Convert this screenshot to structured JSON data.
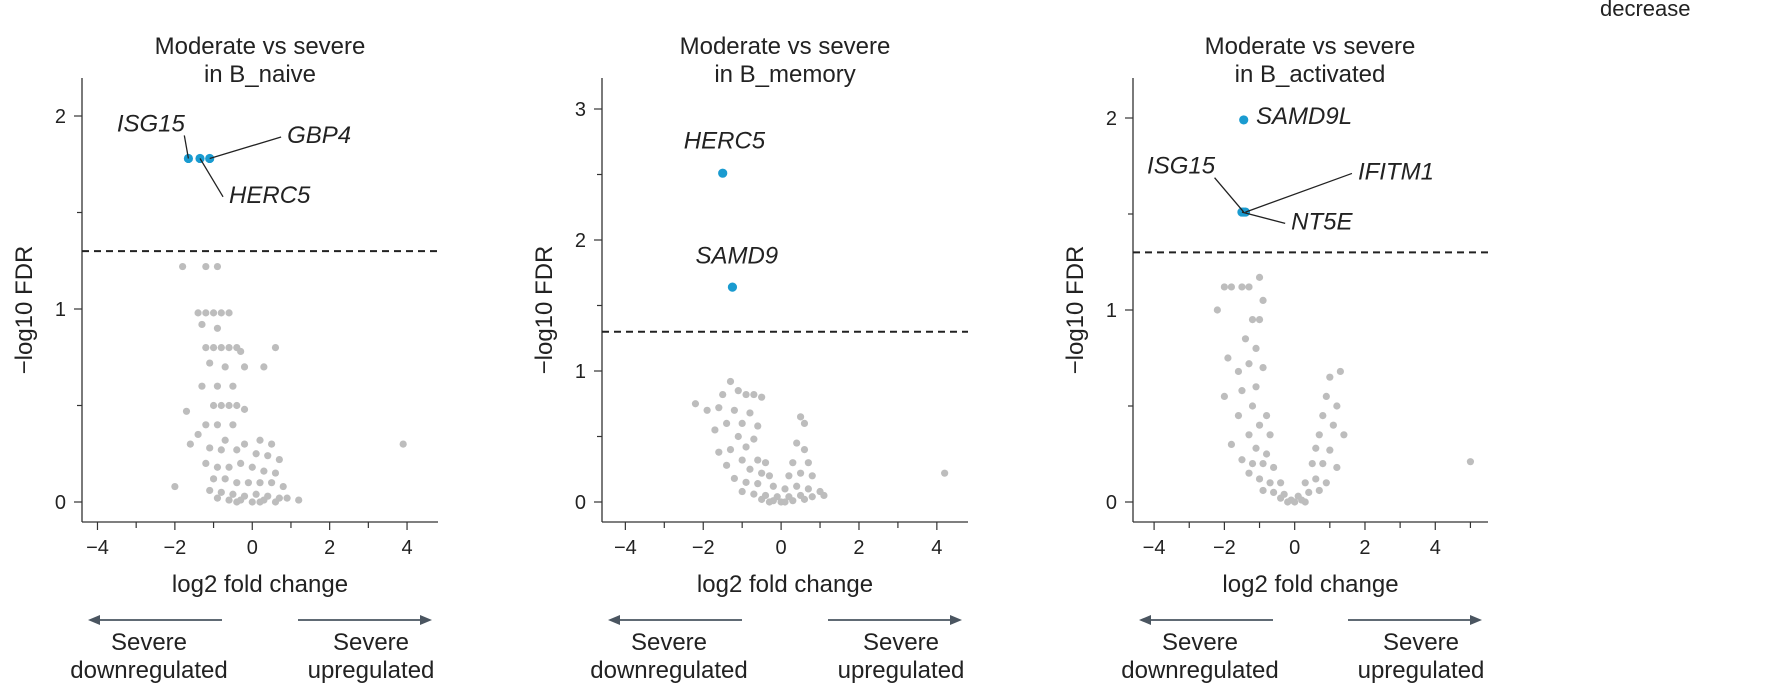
{
  "legend_fragment": "decrease",
  "colors": {
    "significant": "#1a9bd0",
    "nonsignificant": "#bdbdbd",
    "axis": "#333333",
    "arrow": "#4a5560"
  },
  "chart_data": [
    {
      "type": "scatter",
      "title": [
        "Moderate vs severe",
        "in B_naive"
      ],
      "xlabel": "log2 fold change",
      "ylabel": "−log10 FDR",
      "xlim": [
        -4.4,
        4.8
      ],
      "ylim": [
        -0.12,
        2.2
      ],
      "xticks": [
        -4,
        -2,
        0,
        2,
        4
      ],
      "xtick_labels": [
        "−4",
        "−2",
        "0",
        "2",
        "4"
      ],
      "yticks": [
        0,
        1,
        2
      ],
      "ytick_labels": [
        "0",
        "1",
        "2"
      ],
      "threshold": 1.3,
      "direction_labels": {
        "left": [
          "Severe",
          "downregulated"
        ],
        "right": [
          "Severe",
          "upregulated"
        ]
      },
      "significant": [
        {
          "gene": "ISG15",
          "x": -1.65,
          "y": 1.78
        },
        {
          "gene": "HERC5",
          "x": -1.35,
          "y": 1.78
        },
        {
          "gene": "GBP4",
          "x": -1.1,
          "y": 1.78
        }
      ],
      "labels": [
        {
          "text": "ISG15",
          "anchor": "ISG15",
          "tx": -3.5,
          "ty": 1.92
        },
        {
          "text": "GBP4",
          "anchor": "GBP4",
          "tx": 0.9,
          "ty": 1.86
        },
        {
          "text": "HERC5",
          "anchor": "HERC5",
          "tx": -0.6,
          "ty": 1.55
        }
      ],
      "background": [
        [
          -1.8,
          1.22
        ],
        [
          -1.2,
          1.22
        ],
        [
          -0.9,
          1.22
        ],
        [
          -1.4,
          0.98
        ],
        [
          -1.2,
          0.98
        ],
        [
          -1.0,
          0.98
        ],
        [
          -0.8,
          0.98
        ],
        [
          -0.6,
          0.98
        ],
        [
          -1.3,
          0.92
        ],
        [
          -0.9,
          0.9
        ],
        [
          -1.2,
          0.8
        ],
        [
          -1.0,
          0.8
        ],
        [
          -0.8,
          0.8
        ],
        [
          -0.6,
          0.8
        ],
        [
          -0.4,
          0.8
        ],
        [
          -1.1,
          0.72
        ],
        [
          -0.7,
          0.7
        ],
        [
          -0.3,
          0.78
        ],
        [
          -0.2,
          0.7
        ],
        [
          0.3,
          0.7
        ],
        [
          0.6,
          0.8
        ],
        [
          -1.3,
          0.6
        ],
        [
          -0.9,
          0.6
        ],
        [
          -0.5,
          0.6
        ],
        [
          -1.0,
          0.5
        ],
        [
          -0.8,
          0.5
        ],
        [
          -0.6,
          0.5
        ],
        [
          -0.4,
          0.5
        ],
        [
          -0.2,
          0.48
        ],
        [
          -1.7,
          0.47
        ],
        [
          -1.2,
          0.4
        ],
        [
          -0.9,
          0.4
        ],
        [
          -0.5,
          0.4
        ],
        [
          -1.4,
          0.35
        ],
        [
          -0.7,
          0.32
        ],
        [
          -0.2,
          0.3
        ],
        [
          0.2,
          0.32
        ],
        [
          0.5,
          0.3
        ],
        [
          -1.6,
          0.3
        ],
        [
          -1.1,
          0.28
        ],
        [
          -0.8,
          0.27
        ],
        [
          -0.4,
          0.27
        ],
        [
          0.1,
          0.25
        ],
        [
          0.4,
          0.24
        ],
        [
          0.7,
          0.22
        ],
        [
          3.9,
          0.3
        ],
        [
          -1.2,
          0.2
        ],
        [
          -0.9,
          0.18
        ],
        [
          -0.6,
          0.18
        ],
        [
          -0.3,
          0.2
        ],
        [
          0.0,
          0.18
        ],
        [
          0.3,
          0.16
        ],
        [
          0.6,
          0.15
        ],
        [
          -1.0,
          0.12
        ],
        [
          -0.7,
          0.12
        ],
        [
          -0.4,
          0.1
        ],
        [
          -0.1,
          0.1
        ],
        [
          0.2,
          0.1
        ],
        [
          0.5,
          0.1
        ],
        [
          0.8,
          0.08
        ],
        [
          -2.0,
          0.08
        ],
        [
          -1.1,
          0.06
        ],
        [
          -0.8,
          0.05
        ],
        [
          -0.5,
          0.04
        ],
        [
          -0.2,
          0.03
        ],
        [
          0.1,
          0.04
        ],
        [
          0.4,
          0.03
        ],
        [
          0.7,
          0.02
        ],
        [
          0.9,
          0.02
        ],
        [
          1.2,
          0.01
        ],
        [
          -0.9,
          0.02
        ],
        [
          -0.6,
          0.01
        ],
        [
          -0.3,
          0.01
        ],
        [
          0.0,
          0.0
        ],
        [
          0.3,
          0.01
        ],
        [
          0.6,
          0.0
        ],
        [
          -0.4,
          0.0
        ],
        [
          0.2,
          0.0
        ]
      ]
    },
    {
      "type": "scatter",
      "title": [
        "Moderate vs severe",
        "in B_memory"
      ],
      "xlabel": "log2 fold change",
      "ylabel": "−log10 FDR",
      "xlim": [
        -4.6,
        4.8
      ],
      "ylim": [
        -0.15,
        3.3
      ],
      "xticks": [
        -4,
        -2,
        0,
        2,
        4
      ],
      "xtick_labels": [
        "−4",
        "−2",
        "0",
        "2",
        "4"
      ],
      "yticks": [
        0,
        1,
        2,
        3
      ],
      "ytick_labels": [
        "0",
        "1",
        "2",
        "3"
      ],
      "threshold": 1.3,
      "direction_labels": {
        "left": [
          "Severe",
          "downregulated"
        ],
        "right": [
          "Severe",
          "upregulated"
        ]
      },
      "significant": [
        {
          "gene": "HERC5",
          "x": -1.5,
          "y": 2.51
        },
        {
          "gene": "SAMD9",
          "x": -1.25,
          "y": 1.64
        }
      ],
      "labels": [
        {
          "text": "HERC5",
          "anchor": null,
          "tx": -2.5,
          "ty": 2.7
        },
        {
          "text": "SAMD9",
          "anchor": null,
          "tx": -2.2,
          "ty": 1.82
        }
      ],
      "background": [
        [
          -1.3,
          0.92
        ],
        [
          -1.1,
          0.85
        ],
        [
          -0.9,
          0.82
        ],
        [
          -0.7,
          0.82
        ],
        [
          -1.5,
          0.82
        ],
        [
          -0.5,
          0.8
        ],
        [
          -2.2,
          0.75
        ],
        [
          -1.9,
          0.7
        ],
        [
          -1.6,
          0.72
        ],
        [
          -1.2,
          0.7
        ],
        [
          -0.8,
          0.68
        ],
        [
          -1.0,
          0.6
        ],
        [
          -0.6,
          0.58
        ],
        [
          -1.4,
          0.6
        ],
        [
          0.5,
          0.65
        ],
        [
          0.6,
          0.6
        ],
        [
          -1.7,
          0.55
        ],
        [
          -1.1,
          0.5
        ],
        [
          -0.7,
          0.48
        ],
        [
          -0.9,
          0.42
        ],
        [
          -1.3,
          0.4
        ],
        [
          0.4,
          0.45
        ],
        [
          0.6,
          0.4
        ],
        [
          -1.6,
          0.38
        ],
        [
          -1.0,
          0.32
        ],
        [
          -0.6,
          0.32
        ],
        [
          -0.4,
          0.3
        ],
        [
          0.3,
          0.3
        ],
        [
          0.7,
          0.3
        ],
        [
          -1.4,
          0.28
        ],
        [
          -0.8,
          0.25
        ],
        [
          -0.5,
          0.22
        ],
        [
          -0.3,
          0.2
        ],
        [
          0.2,
          0.2
        ],
        [
          0.5,
          0.22
        ],
        [
          0.8,
          0.2
        ],
        [
          4.2,
          0.22
        ],
        [
          -1.2,
          0.18
        ],
        [
          -0.9,
          0.15
        ],
        [
          -0.6,
          0.14
        ],
        [
          -0.2,
          0.12
        ],
        [
          0.1,
          0.1
        ],
        [
          0.4,
          0.12
        ],
        [
          0.7,
          0.1
        ],
        [
          1.0,
          0.08
        ],
        [
          -1.0,
          0.08
        ],
        [
          -0.7,
          0.06
        ],
        [
          -0.4,
          0.05
        ],
        [
          -0.1,
          0.04
        ],
        [
          0.2,
          0.04
        ],
        [
          0.5,
          0.05
        ],
        [
          0.8,
          0.04
        ],
        [
          1.1,
          0.05
        ],
        [
          -0.5,
          0.02
        ],
        [
          -0.2,
          0.01
        ],
        [
          0.0,
          0.0
        ],
        [
          0.3,
          0.01
        ],
        [
          0.6,
          0.02
        ],
        [
          -0.3,
          0.0
        ],
        [
          0.1,
          0.0
        ]
      ]
    },
    {
      "type": "scatter",
      "title": [
        "Moderate vs severe",
        "in B_activated"
      ],
      "xlabel": "log2 fold change",
      "ylabel": "−log10 FDR",
      "xlim": [
        -4.6,
        5.5
      ],
      "ylim": [
        -0.12,
        2.2
      ],
      "xticks": [
        -4,
        -2,
        0,
        2,
        4
      ],
      "xtick_labels": [
        "−4",
        "−2",
        "0",
        "2",
        "4"
      ],
      "yticks": [
        0,
        1,
        2
      ],
      "ytick_labels": [
        "0",
        "1",
        "2"
      ],
      "threshold": 1.3,
      "direction_labels": {
        "left": [
          "Severe",
          "downregulated"
        ],
        "right": [
          "Severe",
          "upregulated"
        ]
      },
      "significant": [
        {
          "gene": "SAMD9L",
          "x": -1.45,
          "y": 1.99
        },
        {
          "gene": "ISG15",
          "x": -1.45,
          "y": 1.51
        },
        {
          "gene": "IFITM1",
          "x": -1.4,
          "y": 1.51
        },
        {
          "gene": "NT5E",
          "x": -1.5,
          "y": 1.51
        }
      ],
      "labels": [
        {
          "text": "SAMD9L",
          "anchor": null,
          "tx": -1.1,
          "ty": 1.97
        },
        {
          "text": "ISG15",
          "anchor": "ISG15",
          "tx": -4.2,
          "ty": 1.71
        },
        {
          "text": "IFITM1",
          "anchor": "IFITM1",
          "tx": 1.8,
          "ty": 1.68
        },
        {
          "text": "NT5E",
          "anchor": "NT5E",
          "tx": -0.1,
          "ty": 1.42
        }
      ],
      "background": [
        [
          -2.0,
          1.12
        ],
        [
          -1.8,
          1.12
        ],
        [
          -1.5,
          1.12
        ],
        [
          -1.3,
          1.12
        ],
        [
          -1.0,
          1.17
        ],
        [
          -0.9,
          1.05
        ],
        [
          -2.2,
          1.0
        ],
        [
          -1.2,
          0.95
        ],
        [
          -1.0,
          0.95
        ],
        [
          -1.4,
          0.85
        ],
        [
          -1.1,
          0.8
        ],
        [
          -1.9,
          0.75
        ],
        [
          -1.3,
          0.72
        ],
        [
          -0.9,
          0.7
        ],
        [
          -1.6,
          0.68
        ],
        [
          1.0,
          0.65
        ],
        [
          1.3,
          0.68
        ],
        [
          -1.1,
          0.6
        ],
        [
          -1.5,
          0.58
        ],
        [
          -2.0,
          0.55
        ],
        [
          0.9,
          0.55
        ],
        [
          1.2,
          0.5
        ],
        [
          -1.2,
          0.5
        ],
        [
          -0.8,
          0.45
        ],
        [
          -1.6,
          0.45
        ],
        [
          0.8,
          0.45
        ],
        [
          1.1,
          0.4
        ],
        [
          -1.0,
          0.4
        ],
        [
          -1.3,
          0.35
        ],
        [
          -0.7,
          0.35
        ],
        [
          0.7,
          0.35
        ],
        [
          1.4,
          0.35
        ],
        [
          -1.8,
          0.3
        ],
        [
          -1.1,
          0.28
        ],
        [
          -0.8,
          0.25
        ],
        [
          0.6,
          0.28
        ],
        [
          1.0,
          0.27
        ],
        [
          -1.5,
          0.22
        ],
        [
          -1.2,
          0.2
        ],
        [
          -0.9,
          0.2
        ],
        [
          -0.6,
          0.18
        ],
        [
          0.5,
          0.2
        ],
        [
          0.8,
          0.2
        ],
        [
          1.2,
          0.18
        ],
        [
          5.0,
          0.21
        ],
        [
          -1.3,
          0.15
        ],
        [
          -1.0,
          0.12
        ],
        [
          -0.7,
          0.1
        ],
        [
          -0.4,
          0.1
        ],
        [
          0.3,
          0.1
        ],
        [
          0.6,
          0.12
        ],
        [
          0.9,
          0.1
        ],
        [
          -0.9,
          0.06
        ],
        [
          -0.6,
          0.05
        ],
        [
          -0.3,
          0.04
        ],
        [
          0.1,
          0.03
        ],
        [
          0.4,
          0.05
        ],
        [
          0.7,
          0.06
        ],
        [
          -0.4,
          0.02
        ],
        [
          -0.1,
          0.01
        ],
        [
          0.0,
          0.0
        ],
        [
          0.2,
          0.01
        ],
        [
          -0.2,
          0.0
        ],
        [
          0.3,
          0.0
        ]
      ]
    }
  ]
}
